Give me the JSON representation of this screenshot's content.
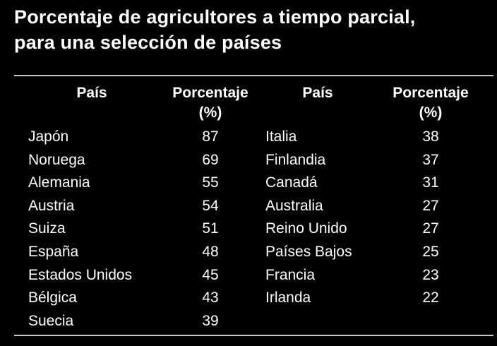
{
  "title": {
    "line1": "Porcentaje de agricultores a tiempo parcial,",
    "line2": "para una selección de países"
  },
  "table": {
    "headers": {
      "country": "País",
      "percent_line1": "Porcentaje",
      "percent_line2": "(%)"
    },
    "left": [
      {
        "country": "Japón",
        "value": "87"
      },
      {
        "country": "Noruega",
        "value": "69"
      },
      {
        "country": "Alemania",
        "value": "55"
      },
      {
        "country": "Austria",
        "value": "54"
      },
      {
        "country": "Suiza",
        "value": "51"
      },
      {
        "country": "España",
        "value": "48"
      },
      {
        "country": "Estados Unidos",
        "value": "45"
      },
      {
        "country": "Bélgica",
        "value": "43"
      },
      {
        "country": "Suecia",
        "value": "39"
      }
    ],
    "right": [
      {
        "country": "Italia",
        "value": "38"
      },
      {
        "country": "Finlandia",
        "value": "37"
      },
      {
        "country": "Canadá",
        "value": "31"
      },
      {
        "country": "Australia",
        "value": "27"
      },
      {
        "country": "Reino Unido",
        "value": "27"
      },
      {
        "country": "Países Bajos",
        "value": "25"
      },
      {
        "country": "Francia",
        "value": "23"
      },
      {
        "country": "Irlanda",
        "value": "22"
      }
    ]
  },
  "colors": {
    "background": "#000000",
    "text": "#ffffff",
    "rule": "#c8c8c8"
  }
}
